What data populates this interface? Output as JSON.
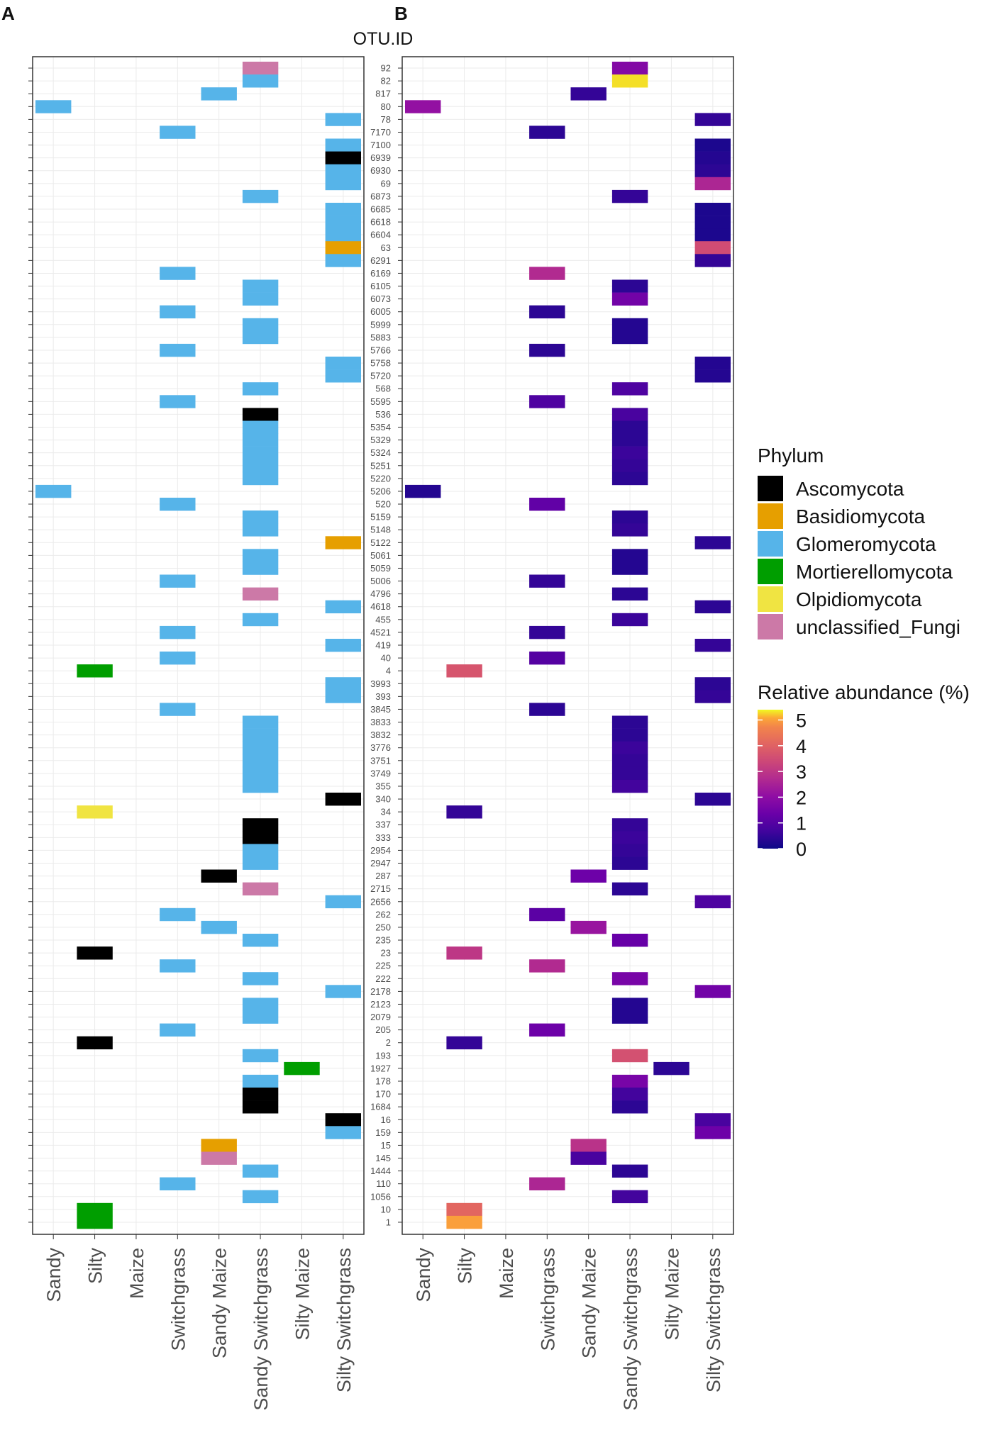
{
  "chart_data": {
    "type": "heatmap",
    "panels": [
      {
        "letter": "A",
        "fill": "phylum"
      },
      {
        "letter": "B",
        "fill": "relative_abundance"
      }
    ],
    "y_axis_title": "OTU.ID",
    "columns": [
      "Sandy",
      "Silty",
      "Maize",
      "Switchgrass",
      "Sandy Maize",
      "Sandy Switchgrass",
      "Silty Maize",
      "Silty Switchgrass"
    ],
    "otu_ids": [
      "92",
      "82",
      "817",
      "80",
      "78",
      "7170",
      "7100",
      "6939",
      "6930",
      "69",
      "6873",
      "6685",
      "6618",
      "6604",
      "63",
      "6291",
      "6169",
      "6105",
      "6073",
      "6005",
      "5999",
      "5883",
      "5766",
      "5758",
      "5720",
      "568",
      "5595",
      "536",
      "5354",
      "5329",
      "5324",
      "5251",
      "5220",
      "5206",
      "520",
      "5159",
      "5148",
      "5122",
      "5061",
      "5059",
      "5006",
      "4796",
      "4618",
      "455",
      "4521",
      "419",
      "40",
      "4",
      "3993",
      "393",
      "3845",
      "3833",
      "3832",
      "3776",
      "3751",
      "3749",
      "355",
      "340",
      "34",
      "337",
      "333",
      "2954",
      "2947",
      "287",
      "2715",
      "2656",
      "262",
      "250",
      "235",
      "23",
      "225",
      "222",
      "2178",
      "2123",
      "2079",
      "205",
      "2",
      "193",
      "1927",
      "178",
      "170",
      "1684",
      "16",
      "159",
      "15",
      "145",
      "1444",
      "110",
      "1056",
      "10",
      "1"
    ],
    "phyla": [
      {
        "name": "Ascomycota",
        "color": "#000000"
      },
      {
        "name": "Basidiomycota",
        "color": "#E69F00"
      },
      {
        "name": "Glomeromycota",
        "color": "#56B4E9"
      },
      {
        "name": "Mortierellomycota",
        "color": "#009E00"
      },
      {
        "name": "Olpidiomycota",
        "color": "#F0E442"
      },
      {
        "name": "unclassified_Fungi",
        "color": "#CC79A7"
      }
    ],
    "cells": [
      {
        "otu": "92",
        "col": "Sandy Switchgrass",
        "phylum": "unclassified_Fungi",
        "value": 1.8
      },
      {
        "otu": "82",
        "col": "Sandy Switchgrass",
        "phylum": "Glomeromycota",
        "value": 5.3
      },
      {
        "otu": "817",
        "col": "Sandy Maize",
        "phylum": "Glomeromycota",
        "value": 0.5
      },
      {
        "otu": "80",
        "col": "Sandy",
        "phylum": "Glomeromycota",
        "value": 2.1
      },
      {
        "otu": "78",
        "col": "Silty Switchgrass",
        "phylum": "Glomeromycota",
        "value": 0.5
      },
      {
        "otu": "7170",
        "col": "Switchgrass",
        "phylum": "Glomeromycota",
        "value": 0.4
      },
      {
        "otu": "7100",
        "col": "Silty Switchgrass",
        "phylum": "Glomeromycota",
        "value": 0.2
      },
      {
        "otu": "6939",
        "col": "Silty Switchgrass",
        "phylum": "Ascomycota",
        "value": 0.3
      },
      {
        "otu": "6930",
        "col": "Silty Switchgrass",
        "phylum": "Glomeromycota",
        "value": 0.4
      },
      {
        "otu": "69",
        "col": "Silty Switchgrass",
        "phylum": "Glomeromycota",
        "value": 2.6
      },
      {
        "otu": "6873",
        "col": "Sandy Switchgrass",
        "phylum": "Glomeromycota",
        "value": 0.5
      },
      {
        "otu": "6685",
        "col": "Silty Switchgrass",
        "phylum": "Glomeromycota",
        "value": 0.2
      },
      {
        "otu": "6618",
        "col": "Silty Switchgrass",
        "phylum": "Glomeromycota",
        "value": 0.2
      },
      {
        "otu": "6604",
        "col": "Silty Switchgrass",
        "phylum": "Glomeromycota",
        "value": 0.2
      },
      {
        "otu": "63",
        "col": "Silty Switchgrass",
        "phylum": "Basidiomycota",
        "value": 3.5
      },
      {
        "otu": "6291",
        "col": "Silty Switchgrass",
        "phylum": "Glomeromycota",
        "value": 0.5
      },
      {
        "otu": "6169",
        "col": "Switchgrass",
        "phylum": "Glomeromycota",
        "value": 2.7
      },
      {
        "otu": "6105",
        "col": "Sandy Switchgrass",
        "phylum": "Glomeromycota",
        "value": 0.4
      },
      {
        "otu": "6073",
        "col": "Sandy Switchgrass",
        "phylum": "Glomeromycota",
        "value": 1.5
      },
      {
        "otu": "6005",
        "col": "Switchgrass",
        "phylum": "Glomeromycota",
        "value": 0.4
      },
      {
        "otu": "5999",
        "col": "Sandy Switchgrass",
        "phylum": "Glomeromycota",
        "value": 0.3
      },
      {
        "otu": "5883",
        "col": "Sandy Switchgrass",
        "phylum": "Glomeromycota",
        "value": 0.3
      },
      {
        "otu": "5766",
        "col": "Switchgrass",
        "phylum": "Glomeromycota",
        "value": 0.4
      },
      {
        "otu": "5758",
        "col": "Silty Switchgrass",
        "phylum": "Glomeromycota",
        "value": 0.3
      },
      {
        "otu": "5720",
        "col": "Silty Switchgrass",
        "phylum": "Glomeromycota",
        "value": 0.3
      },
      {
        "otu": "568",
        "col": "Sandy Switchgrass",
        "phylum": "Glomeromycota",
        "value": 0.9
      },
      {
        "otu": "5595",
        "col": "Switchgrass",
        "phylum": "Glomeromycota",
        "value": 0.9
      },
      {
        "otu": "536",
        "col": "Sandy Switchgrass",
        "phylum": "Ascomycota",
        "value": 0.8
      },
      {
        "otu": "5354",
        "col": "Sandy Switchgrass",
        "phylum": "Glomeromycota",
        "value": 0.4
      },
      {
        "otu": "5329",
        "col": "Sandy Switchgrass",
        "phylum": "Glomeromycota",
        "value": 0.4
      },
      {
        "otu": "5324",
        "col": "Sandy Switchgrass",
        "phylum": "Glomeromycota",
        "value": 0.6
      },
      {
        "otu": "5251",
        "col": "Sandy Switchgrass",
        "phylum": "Glomeromycota",
        "value": 0.5
      },
      {
        "otu": "5220",
        "col": "Sandy Switchgrass",
        "phylum": "Glomeromycota",
        "value": 0.4
      },
      {
        "otu": "5206",
        "col": "Sandy",
        "phylum": "Glomeromycota",
        "value": 0.3
      },
      {
        "otu": "520",
        "col": "Switchgrass",
        "phylum": "Glomeromycota",
        "value": 1.2
      },
      {
        "otu": "5159",
        "col": "Sandy Switchgrass",
        "phylum": "Glomeromycota",
        "value": 0.4
      },
      {
        "otu": "5148",
        "col": "Sandy Switchgrass",
        "phylum": "Glomeromycota",
        "value": 0.5
      },
      {
        "otu": "5122",
        "col": "Silty Switchgrass",
        "phylum": "Basidiomycota",
        "value": 0.4
      },
      {
        "otu": "5061",
        "col": "Sandy Switchgrass",
        "phylum": "Glomeromycota",
        "value": 0.3
      },
      {
        "otu": "5059",
        "col": "Sandy Switchgrass",
        "phylum": "Glomeromycota",
        "value": 0.3
      },
      {
        "otu": "5006",
        "col": "Switchgrass",
        "phylum": "Glomeromycota",
        "value": 0.5
      },
      {
        "otu": "4796",
        "col": "Sandy Switchgrass",
        "phylum": "unclassified_Fungi",
        "value": 0.4
      },
      {
        "otu": "4618",
        "col": "Silty Switchgrass",
        "phylum": "Glomeromycota",
        "value": 0.4
      },
      {
        "otu": "455",
        "col": "Sandy Switchgrass",
        "phylum": "Glomeromycota",
        "value": 0.6
      },
      {
        "otu": "4521",
        "col": "Switchgrass",
        "phylum": "Glomeromycota",
        "value": 0.5
      },
      {
        "otu": "419",
        "col": "Silty Switchgrass",
        "phylum": "Glomeromycota",
        "value": 0.5
      },
      {
        "otu": "40",
        "col": "Switchgrass",
        "phylum": "Glomeromycota",
        "value": 1.0
      },
      {
        "otu": "4",
        "col": "Silty",
        "phylum": "Mortierellomycota",
        "value": 3.7
      },
      {
        "otu": "3993",
        "col": "Silty Switchgrass",
        "phylum": "Glomeromycota",
        "value": 0.4
      },
      {
        "otu": "393",
        "col": "Silty Switchgrass",
        "phylum": "Glomeromycota",
        "value": 0.5
      },
      {
        "otu": "3845",
        "col": "Switchgrass",
        "phylum": "Glomeromycota",
        "value": 0.4
      },
      {
        "otu": "3833",
        "col": "Sandy Switchgrass",
        "phylum": "Glomeromycota",
        "value": 0.4
      },
      {
        "otu": "3832",
        "col": "Sandy Switchgrass",
        "phylum": "Glomeromycota",
        "value": 0.4
      },
      {
        "otu": "3776",
        "col": "Sandy Switchgrass",
        "phylum": "Glomeromycota",
        "value": 0.6
      },
      {
        "otu": "3751",
        "col": "Sandy Switchgrass",
        "phylum": "Glomeromycota",
        "value": 0.5
      },
      {
        "otu": "3749",
        "col": "Sandy Switchgrass",
        "phylum": "Glomeromycota",
        "value": 0.5
      },
      {
        "otu": "355",
        "col": "Sandy Switchgrass",
        "phylum": "Glomeromycota",
        "value": 0.7
      },
      {
        "otu": "340",
        "col": "Silty Switchgrass",
        "phylum": "Ascomycota",
        "value": 0.4
      },
      {
        "otu": "34",
        "col": "Silty",
        "phylum": "Olpidiomycota",
        "value": 0.5
      },
      {
        "otu": "337",
        "col": "Sandy Switchgrass",
        "phylum": "Ascomycota",
        "value": 0.5
      },
      {
        "otu": "333",
        "col": "Sandy Switchgrass",
        "phylum": "Ascomycota",
        "value": 0.6
      },
      {
        "otu": "2954",
        "col": "Sandy Switchgrass",
        "phylum": "Glomeromycota",
        "value": 0.5
      },
      {
        "otu": "2947",
        "col": "Sandy Switchgrass",
        "phylum": "Glomeromycota",
        "value": 0.4
      },
      {
        "otu": "287",
        "col": "Sandy Maize",
        "phylum": "Ascomycota",
        "value": 1.4
      },
      {
        "otu": "2715",
        "col": "Sandy Switchgrass",
        "phylum": "unclassified_Fungi",
        "value": 0.4
      },
      {
        "otu": "2656",
        "col": "Silty Switchgrass",
        "phylum": "Glomeromycota",
        "value": 0.9
      },
      {
        "otu": "262",
        "col": "Switchgrass",
        "phylum": "Glomeromycota",
        "value": 1.1
      },
      {
        "otu": "250",
        "col": "Sandy Maize",
        "phylum": "Glomeromycota",
        "value": 2.2
      },
      {
        "otu": "235",
        "col": "Sandy Switchgrass",
        "phylum": "Glomeromycota",
        "value": 1.3
      },
      {
        "otu": "23",
        "col": "Silty",
        "phylum": "Ascomycota",
        "value": 3.0
      },
      {
        "otu": "225",
        "col": "Switchgrass",
        "phylum": "Glomeromycota",
        "value": 2.7
      },
      {
        "otu": "222",
        "col": "Sandy Switchgrass",
        "phylum": "Glomeromycota",
        "value": 1.6
      },
      {
        "otu": "2178",
        "col": "Silty Switchgrass",
        "phylum": "Glomeromycota",
        "value": 1.5
      },
      {
        "otu": "2123",
        "col": "Sandy Switchgrass",
        "phylum": "Glomeromycota",
        "value": 0.3
      },
      {
        "otu": "2079",
        "col": "Sandy Switchgrass",
        "phylum": "Glomeromycota",
        "value": 0.3
      },
      {
        "otu": "205",
        "col": "Switchgrass",
        "phylum": "Glomeromycota",
        "value": 1.4
      },
      {
        "otu": "2",
        "col": "Silty",
        "phylum": "Ascomycota",
        "value": 0.5
      },
      {
        "otu": "193",
        "col": "Sandy Switchgrass",
        "phylum": "Glomeromycota",
        "value": 3.6
      },
      {
        "otu": "1927",
        "col": "Silty Maize",
        "phylum": "Mortierellomycota",
        "value": 0.4
      },
      {
        "otu": "178",
        "col": "Sandy Switchgrass",
        "phylum": "Glomeromycota",
        "value": 1.6
      },
      {
        "otu": "170",
        "col": "Sandy Switchgrass",
        "phylum": "Ascomycota",
        "value": 0.7
      },
      {
        "otu": "1684",
        "col": "Sandy Switchgrass",
        "phylum": "Ascomycota",
        "value": 0.4
      },
      {
        "otu": "16",
        "col": "Silty Switchgrass",
        "phylum": "Ascomycota",
        "value": 0.8
      },
      {
        "otu": "159",
        "col": "Silty Switchgrass",
        "phylum": "Glomeromycota",
        "value": 1.4
      },
      {
        "otu": "15",
        "col": "Sandy Maize",
        "phylum": "Basidiomycota",
        "value": 2.9
      },
      {
        "otu": "145",
        "col": "Sandy Maize",
        "phylum": "unclassified_Fungi",
        "value": 0.8
      },
      {
        "otu": "1444",
        "col": "Sandy Switchgrass",
        "phylum": "Glomeromycota",
        "value": 0.4
      },
      {
        "otu": "110",
        "col": "Switchgrass",
        "phylum": "Glomeromycota",
        "value": 2.6
      },
      {
        "otu": "1056",
        "col": "Sandy Switchgrass",
        "phylum": "Glomeromycota",
        "value": 0.7
      },
      {
        "otu": "10",
        "col": "Silty",
        "phylum": "Mortierellomycota",
        "value": 4.1
      },
      {
        "otu": "1",
        "col": "Silty",
        "phylum": "Mortierellomycota",
        "value": 5.0
      }
    ],
    "legend_phylum_title": "Phylum",
    "colorbar": {
      "title": "Relative abundance (%)",
      "ticks": [
        5,
        4,
        3,
        2,
        1,
        0
      ],
      "range": [
        0,
        5.4
      ],
      "palette": "plasma"
    }
  }
}
